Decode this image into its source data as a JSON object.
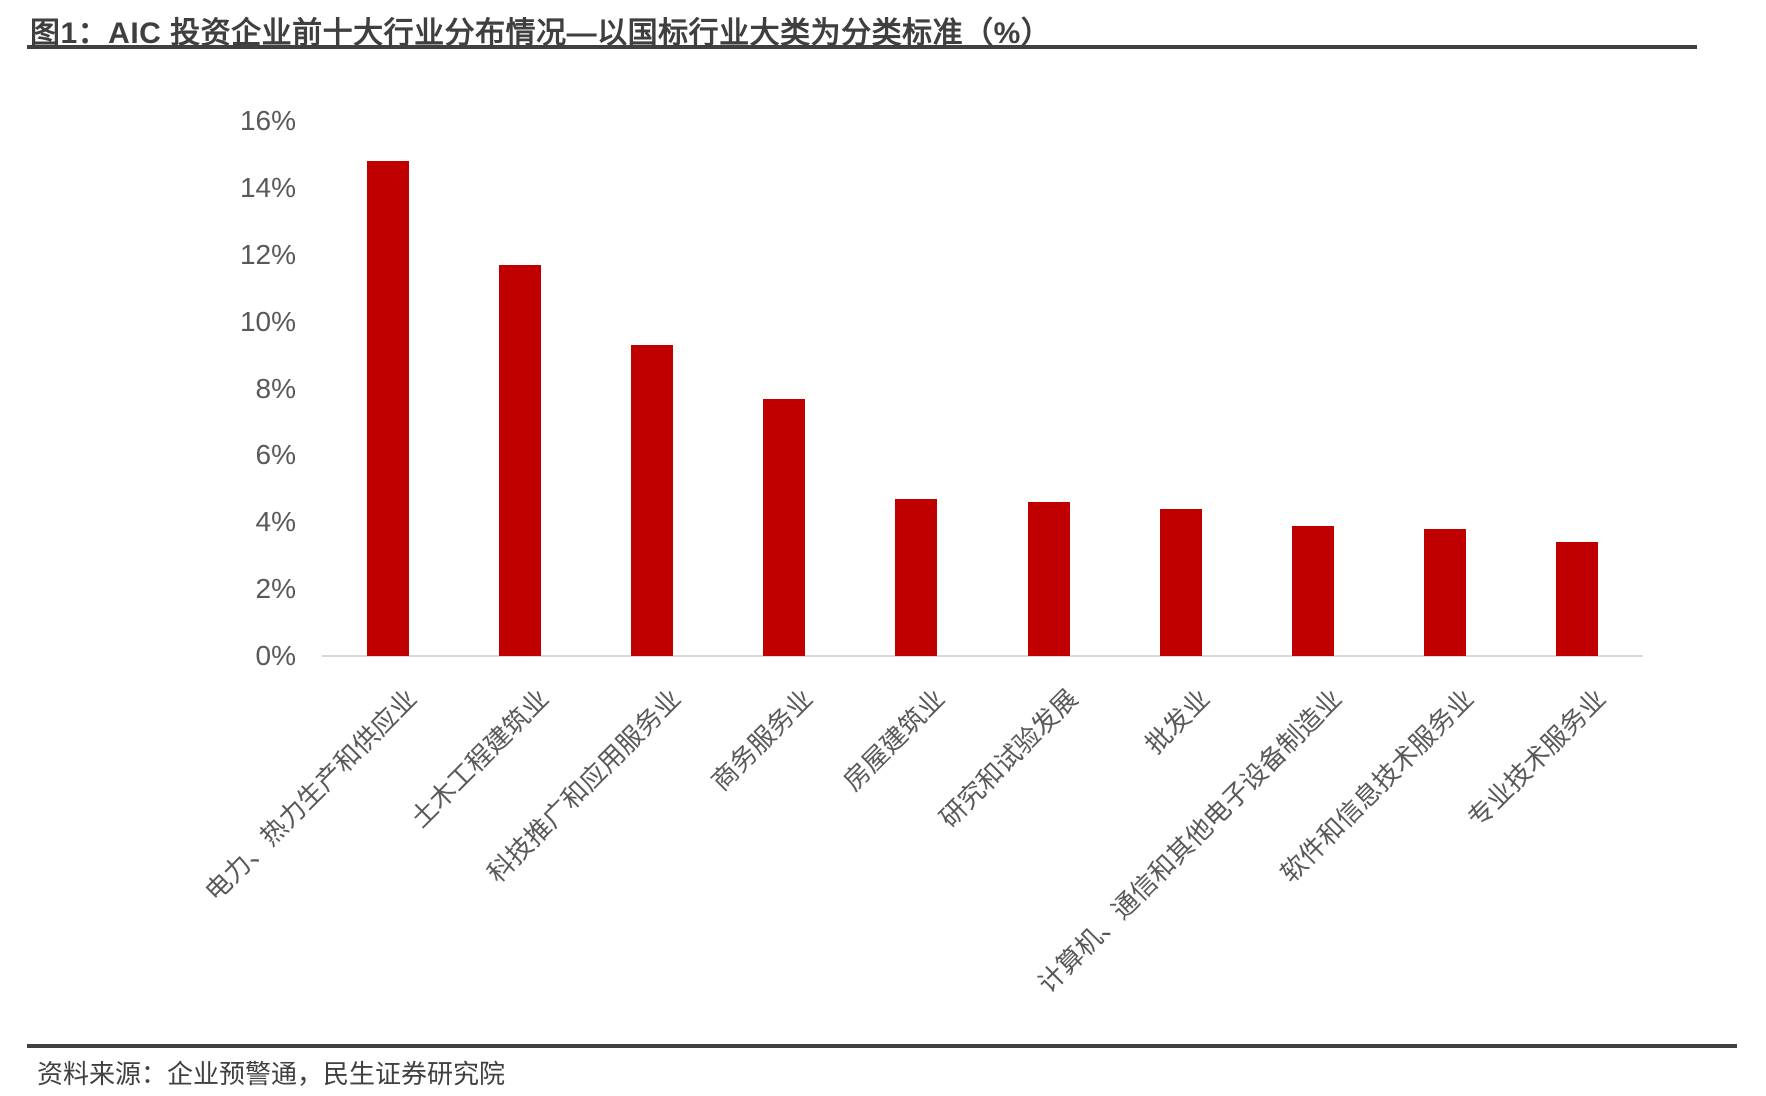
{
  "figure": {
    "title": "图1：AIC 投资企业前十大行业分布情况—以国标行业大类为分类标准（%）",
    "source": "资料来源：企业预警通，民生证券研究院"
  },
  "colors": {
    "bar": "#C00000",
    "axis_line": "#D9D9D9",
    "tick_label": "#595959",
    "title_text": "#3F3F3F",
    "rule": "#404040"
  },
  "chart_data": {
    "type": "bar",
    "title": "AIC 投资企业前十大行业分布情况—以国标行业大类为分类标准（%）",
    "categories": [
      "电力、热力生产和供应业",
      "土木工程建筑业",
      "科技推广和应用服务业",
      "商务服务业",
      "房屋建筑业",
      "研究和试验发展",
      "批发业",
      "计算机、通信和其他电子设备制造业",
      "软件和信息技术服务业",
      "专业技术服务业"
    ],
    "values": [
      14.8,
      11.7,
      9.3,
      7.7,
      4.7,
      4.6,
      4.4,
      3.9,
      3.8,
      3.4
    ],
    "xlabel": "",
    "ylabel": "",
    "ylim": [
      0,
      16
    ],
    "ytick_step": 2,
    "ytick_suffix": "%",
    "grid": false,
    "legend": false,
    "bar_color": "#C00000",
    "x_label_rotation_deg": 45
  }
}
